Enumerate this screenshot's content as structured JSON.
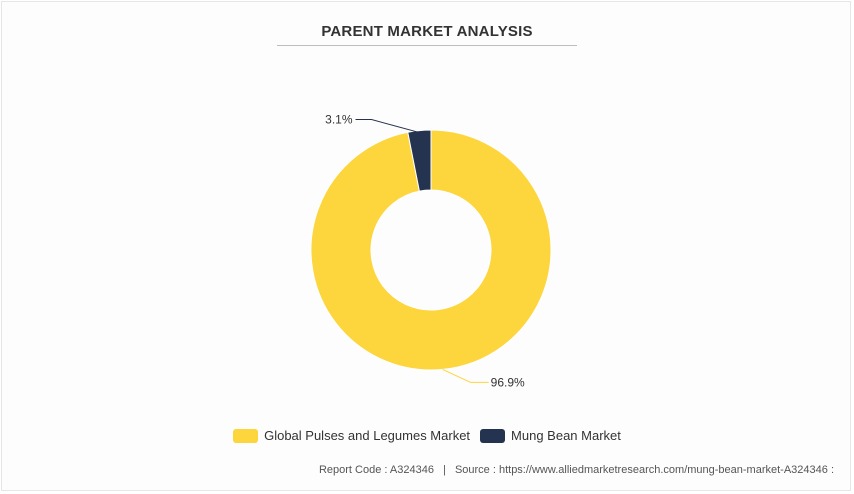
{
  "chart_data": {
    "type": "pie",
    "title": "PARENT MARKET ANALYSIS",
    "categories": [
      "Global Pulses and Legumes Market",
      "Mung Bean Market"
    ],
    "values": [
      96.9,
      3.1
    ],
    "data_labels": [
      "96.9%",
      "3.1%"
    ],
    "colors": [
      "#fdd53d",
      "#24334f"
    ],
    "donut": true,
    "legend_position": "bottom"
  },
  "footer": {
    "report_code": "Report Code : A324346",
    "separator": "|",
    "source": "Source : https://www.alliedmarketresearch.com/mung-bean-market-A324346 :"
  }
}
